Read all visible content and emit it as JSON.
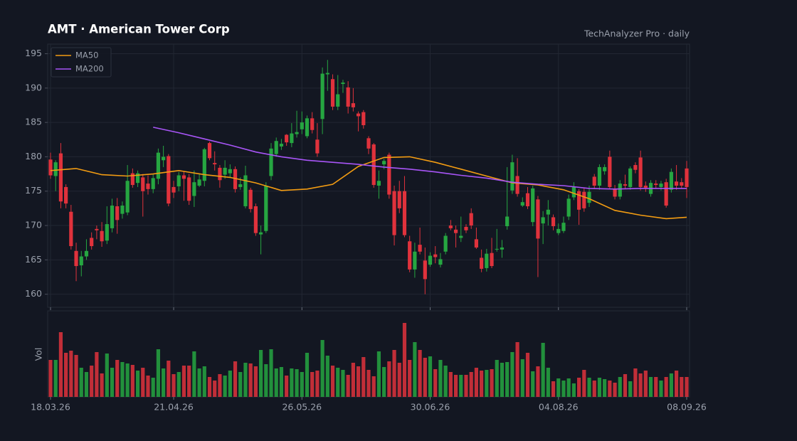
{
  "chart_data": {
    "type": "candlestick",
    "title": "AMT  ·  American Tower Corp",
    "subtitle": "TechAnalyzer Pro · daily",
    "volume_label": "Vol",
    "up_color": "#26a641",
    "down_color": "#e0323c",
    "grid": true,
    "legend_position": "upper left",
    "ylim": [
      158.1,
      196.4
    ],
    "yticks": [
      160,
      165,
      170,
      175,
      180,
      185,
      190,
      195
    ],
    "volume_lim": [
      0,
      121
    ],
    "xticks": [
      "18.03.26",
      "21.04.26",
      "26.05.26",
      "30.06.26",
      "04.08.26",
      "08.09.26"
    ],
    "x": [
      "18.03.26",
      "19.03.26",
      "20.03.26",
      "23.03.26",
      "24.03.26",
      "25.03.26",
      "26.03.26",
      "27.03.26",
      "30.03.26",
      "31.03.26",
      "01.04.26",
      "02.04.26",
      "03.04.26",
      "06.04.26",
      "07.04.26",
      "08.04.26",
      "09.04.26",
      "10.04.26",
      "13.04.26",
      "14.04.26",
      "15.04.26",
      "16.04.26",
      "17.04.26",
      "20.04.26",
      "21.04.26",
      "22.04.26",
      "23.04.26",
      "24.04.26",
      "27.04.26",
      "28.04.26",
      "29.04.26",
      "30.04.26",
      "01.05.26",
      "04.05.26",
      "05.05.26",
      "06.05.26",
      "07.05.26",
      "08.05.26",
      "11.05.26",
      "12.05.26",
      "13.05.26",
      "14.05.26",
      "15.05.26",
      "18.05.26",
      "19.05.26",
      "20.05.26",
      "21.05.26",
      "22.05.26",
      "25.05.26",
      "26.05.26",
      "27.05.26",
      "28.05.26",
      "29.05.26",
      "01.06.26",
      "02.06.26",
      "03.06.26",
      "04.06.26",
      "05.06.26",
      "08.06.26",
      "09.06.26",
      "10.06.26",
      "11.06.26",
      "12.06.26",
      "15.06.26",
      "16.06.26",
      "17.06.26",
      "18.06.26",
      "19.06.26",
      "22.06.26",
      "23.06.26",
      "24.06.26",
      "25.06.26",
      "26.06.26",
      "29.06.26",
      "30.06.26",
      "01.07.26",
      "02.07.26",
      "03.07.26",
      "06.07.26",
      "07.07.26",
      "08.07.26",
      "09.07.26",
      "10.07.26",
      "13.07.26",
      "14.07.26",
      "15.07.26",
      "16.07.26",
      "17.07.26",
      "20.07.26",
      "21.07.26",
      "22.07.26",
      "23.07.26",
      "24.07.26",
      "27.07.26",
      "28.07.26",
      "29.07.26",
      "30.07.26",
      "31.07.26",
      "03.08.26",
      "04.08.26",
      "05.08.26",
      "06.08.26",
      "07.08.26",
      "10.08.26",
      "11.08.26",
      "12.08.26",
      "13.08.26",
      "14.08.26",
      "17.08.26",
      "18.08.26",
      "19.08.26",
      "20.08.26",
      "21.08.26",
      "24.08.26",
      "25.08.26",
      "26.08.26",
      "27.08.26",
      "28.08.26",
      "31.08.26",
      "01.09.26",
      "02.09.26",
      "03.09.26",
      "04.09.26",
      "07.09.26",
      "08.09.26"
    ],
    "open": [
      179.6,
      177.2,
      180.5,
      175.6,
      172,
      166.3,
      164.2,
      165.5,
      168.2,
      169.5,
      169.2,
      167.8,
      169.6,
      172.8,
      171.7,
      171.9,
      177.6,
      176.2,
      177,
      176.1,
      175.3,
      176.8,
      179.5,
      180.1,
      175.6,
      175.7,
      177.3,
      177,
      174.3,
      175.8,
      176.5,
      182,
      179.1,
      178.4,
      177.4,
      177.6,
      178.2,
      175.6,
      172.8,
      175.2,
      172.8,
      168.7,
      169.2,
      177.2,
      180.4,
      181.5,
      183.2,
      182,
      183.3,
      184,
      183,
      185.6,
      182.5,
      185.5,
      192,
      191.3,
      187.3,
      190.6,
      190.1,
      187.8,
      186.3,
      186.5,
      182.7,
      181.8,
      175.8,
      178.9,
      180.3,
      175,
      175,
      175,
      167.7,
      163.6,
      167.2,
      164.9,
      164.3,
      165.8,
      164.3,
      166.2,
      170,
      169.4,
      168.2,
      169.8,
      171.8,
      168,
      165.3,
      163.8,
      166,
      166.5,
      166.5,
      169.9,
      175.1,
      177.2,
      172.9,
      174.7,
      170.5,
      173.8,
      170.3,
      171.6,
      171.2,
      168.9,
      169.2,
      171.3,
      174.1,
      175,
      174.9,
      173.3,
      177.1,
      175.8,
      177.9,
      180,
      175.3,
      174.2,
      176,
      175.6,
      178.8,
      179.9,
      175.8,
      174.6,
      176.1,
      175.6,
      176.3,
      175.2,
      176.4,
      176.3,
      178.3
    ],
    "high": [
      180.6,
      179.5,
      182,
      176,
      173,
      167.5,
      166.3,
      168,
      169,
      170,
      170.5,
      172.8,
      173.9,
      174,
      173.5,
      178.8,
      178.3,
      178,
      177.5,
      177.3,
      177.5,
      181.2,
      181.6,
      180.4,
      176.5,
      177.8,
      177.9,
      177.5,
      178,
      177.5,
      181.3,
      182.2,
      180.8,
      178.8,
      179.5,
      178.9,
      178.6,
      177,
      178.7,
      175.5,
      173.2,
      170,
      176.3,
      182,
      182.8,
      182.6,
      183.3,
      184.9,
      186.7,
      186.6,
      186,
      186.5,
      184.9,
      193,
      194.1,
      192,
      191.9,
      191.2,
      191,
      190,
      186.6,
      186.8,
      183,
      182,
      178,
      179.7,
      180.6,
      175.8,
      176.5,
      177.2,
      168.5,
      167.5,
      169.7,
      166.8,
      166.1,
      167,
      166,
      168.9,
      170.8,
      170,
      171.3,
      170.2,
      172.5,
      169.7,
      166.5,
      166.6,
      168.2,
      169.5,
      167.9,
      178.5,
      180.3,
      179.8,
      174.1,
      175.6,
      175.8,
      174.3,
      172.1,
      173.7,
      171.6,
      170.3,
      171.3,
      174.5,
      176.3,
      175.3,
      175.4,
      175.8,
      177.5,
      178.9,
      178.9,
      180.9,
      175.9,
      176.6,
      177.4,
      178.6,
      179.2,
      180.9,
      176.4,
      176.6,
      176.6,
      176.5,
      176.8,
      178.3,
      178.8,
      176.9,
      179.4
    ],
    "low": [
      176.8,
      175,
      172.5,
      172.5,
      166.5,
      161.9,
      162.6,
      165,
      166.5,
      168,
      166.9,
      167.3,
      169,
      168.8,
      171,
      171.5,
      175.5,
      175.6,
      171.3,
      174.5,
      174.7,
      176,
      178.5,
      172.8,
      174,
      175,
      173.6,
      173,
      172.7,
      175.6,
      175.7,
      179.5,
      178,
      175.5,
      176.8,
      177,
      174.8,
      175.2,
      172.5,
      171.9,
      168.5,
      165.8,
      168.9,
      176.6,
      180,
      181,
      181.6,
      181.4,
      182.8,
      183.3,
      182.7,
      183.4,
      180,
      183.3,
      189.6,
      186.8,
      186.8,
      189.3,
      186.3,
      186.6,
      183.7,
      184.1,
      180.4,
      175.5,
      173.9,
      178.2,
      173.9,
      167.1,
      171.8,
      168.3,
      163.2,
      162.4,
      165.8,
      160,
      164,
      164.5,
      163.9,
      165.8,
      169.3,
      166.8,
      167.6,
      168.9,
      169.5,
      166.6,
      163.2,
      163.3,
      163.8,
      166.2,
      165.3,
      169.4,
      174.6,
      174.2,
      172.7,
      172.4,
      169.9,
      162.5,
      167.3,
      170,
      169.3,
      168.6,
      168.9,
      170.8,
      173.7,
      170.1,
      172,
      172.7,
      175.4,
      175.2,
      177.4,
      175.3,
      173.8,
      173.8,
      175.3,
      175.2,
      177.6,
      175.1,
      174.9,
      174.2,
      175.4,
      175.1,
      172.6,
      174.8,
      175.2,
      175.4,
      174
    ],
    "close": [
      177.3,
      179.2,
      173.5,
      173.2,
      167,
      164.1,
      165.5,
      166.3,
      167,
      169.3,
      167.7,
      170.2,
      172.9,
      170.8,
      172.9,
      176.5,
      175.9,
      177.6,
      175,
      175.3,
      176.9,
      180.6,
      180,
      173.2,
      174.8,
      177.3,
      176.8,
      173.6,
      176.3,
      176.7,
      181.1,
      179.8,
      178.9,
      176.6,
      178.4,
      178.2,
      175.3,
      176,
      177.3,
      172.4,
      168.9,
      169,
      175.8,
      181.2,
      182.3,
      181.9,
      182.1,
      183.4,
      183.6,
      185,
      185.6,
      183.9,
      180.5,
      192.1,
      192.2,
      187.3,
      189.1,
      190.8,
      187.3,
      187.2,
      185.9,
      184.6,
      181.2,
      175.9,
      176.5,
      179.4,
      174.5,
      168.6,
      172.5,
      168.6,
      163.6,
      166.2,
      166.2,
      162.2,
      165.6,
      165.4,
      165.1,
      168.5,
      169.6,
      168.9,
      168.5,
      169.3,
      170,
      166.8,
      163.7,
      165.9,
      164.1,
      166.6,
      166.8,
      171.3,
      179.2,
      174.6,
      173.4,
      172.8,
      175.4,
      168.1,
      171.2,
      172.3,
      169.9,
      169.5,
      170.4,
      173.9,
      175.6,
      172.3,
      172.5,
      174.9,
      175.8,
      178.5,
      178.5,
      175.6,
      174.2,
      176.1,
      175.8,
      178.3,
      178.1,
      175.6,
      175.5,
      176.2,
      175.9,
      176.1,
      172.9,
      177.8,
      175.8,
      175.8,
      175.6
    ],
    "volume": [
      52,
      52,
      91,
      62,
      65,
      59,
      41,
      35,
      44,
      63,
      33,
      61,
      41,
      52,
      49,
      47,
      45,
      37,
      41,
      30,
      27,
      67,
      40,
      51,
      32,
      35,
      44,
      44,
      64,
      40,
      43,
      28,
      23,
      32,
      30,
      37,
      50,
      35,
      48,
      47,
      43,
      66,
      46,
      67,
      40,
      42,
      30,
      40,
      39,
      35,
      62,
      35,
      37,
      80,
      58,
      44,
      41,
      38,
      31,
      48,
      43,
      56,
      38,
      29,
      64,
      42,
      50,
      66,
      48,
      104,
      52,
      77,
      66,
      55,
      57,
      39,
      52,
      44,
      35,
      31,
      31,
      31,
      35,
      41,
      37,
      38,
      39,
      52,
      48,
      49,
      63,
      77,
      53,
      62,
      36,
      43,
      76,
      41,
      22,
      26,
      23,
      26,
      19,
      27,
      38,
      27,
      23,
      27,
      25,
      23,
      20,
      28,
      32,
      22,
      40,
      33,
      37,
      28,
      28,
      23,
      28,
      33,
      37,
      28,
      28
    ],
    "series": [
      {
        "name": "MA50",
        "color": "#f39c12",
        "x": [
          "18.03.26",
          "25.03.26",
          "01.04.26",
          "08.04.26",
          "15.04.26",
          "22.04.26",
          "29.04.26",
          "06.05.26",
          "13.05.26",
          "20.05.26",
          "27.05.26",
          "03.06.26",
          "10.06.26",
          "17.06.26",
          "24.06.26",
          "01.07.26",
          "08.07.26",
          "15.07.26",
          "22.07.26",
          "29.07.26",
          "05.08.26",
          "12.08.26",
          "19.08.26",
          "26.08.26",
          "02.09.26",
          "08.09.26"
        ],
        "values": [
          178.0,
          178.3,
          177.4,
          177.2,
          177.5,
          178.0,
          177.4,
          177.0,
          176.2,
          175.1,
          175.3,
          176.0,
          178.6,
          179.9,
          180.0,
          179.2,
          178.2,
          177.2,
          176.2,
          175.9,
          175.2,
          173.9,
          172.2,
          171.5,
          171.0,
          171.2
        ]
      },
      {
        "name": "MA200",
        "color": "#a855f7",
        "x": [
          "15.04.26",
          "22.04.26",
          "29.04.26",
          "06.05.26",
          "13.05.26",
          "20.05.26",
          "27.05.26",
          "03.06.26",
          "10.06.26",
          "17.06.26",
          "24.06.26",
          "01.07.26",
          "08.07.26",
          "15.07.26",
          "22.07.26",
          "29.07.26",
          "05.08.26",
          "12.08.26",
          "19.08.26",
          "26.08.26",
          "02.09.26",
          "08.09.26"
        ],
        "values": [
          184.3,
          183.5,
          182.6,
          181.7,
          180.7,
          180.0,
          179.5,
          179.2,
          178.9,
          178.5,
          178.2,
          177.8,
          177.3,
          176.9,
          176.3,
          176.0,
          175.8,
          175.4,
          175.3,
          175.4,
          175.4,
          175.4
        ]
      }
    ]
  }
}
